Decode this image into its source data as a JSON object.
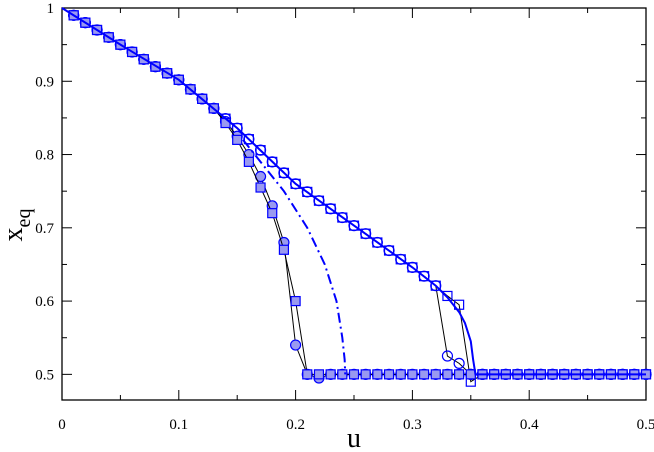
{
  "chart_data": {
    "type": "line",
    "xlabel": "u",
    "ylabel": "x",
    "ylabel_sub": "eq",
    "xlim": [
      0,
      0.5
    ],
    "ylim": [
      0.465,
      1
    ],
    "xticks": [
      0,
      0.1,
      0.2,
      0.3,
      0.4,
      0.5
    ],
    "yticks": [
      0.5,
      0.6,
      0.7,
      0.8,
      0.9,
      1
    ],
    "xminor_ticks": [
      0.05,
      0.15,
      0.25,
      0.35,
      0.45
    ],
    "yminor_ticks": [
      0.55,
      0.65,
      0.75,
      0.85,
      0.95
    ],
    "x": [
      0.01,
      0.02,
      0.03,
      0.04,
      0.05,
      0.06,
      0.07,
      0.08,
      0.09,
      0.1,
      0.11,
      0.12,
      0.13,
      0.14,
      0.15,
      0.16,
      0.17,
      0.18,
      0.19,
      0.2,
      0.21,
      0.22,
      0.23,
      0.24,
      0.25,
      0.26,
      0.27,
      0.28,
      0.29,
      0.3,
      0.31,
      0.32,
      0.33,
      0.34,
      0.35,
      0.36,
      0.37,
      0.38,
      0.39,
      0.4,
      0.41,
      0.42,
      0.43,
      0.44,
      0.45,
      0.46,
      0.47,
      0.48,
      0.49,
      0.5
    ],
    "series": [
      {
        "color": "#0000ff",
        "marker": "circle",
        "fill": "none",
        "line": "#000000",
        "values": [
          0.99,
          0.98,
          0.97,
          0.96,
          0.95,
          0.94,
          0.93,
          0.92,
          0.911,
          0.902,
          0.889,
          0.876,
          0.863,
          0.849,
          0.836,
          0.821,
          0.806,
          0.79,
          0.775,
          0.76,
          0.749,
          0.737,
          0.726,
          0.714,
          0.703,
          0.692,
          0.68,
          0.669,
          0.657,
          0.646,
          0.634,
          0.621,
          0.525,
          0.515,
          0.5,
          0.5,
          0.5,
          0.5,
          0.5,
          0.5,
          0.5,
          0.5,
          0.5,
          0.5,
          0.5,
          0.5,
          0.5,
          0.5,
          0.5,
          0.5
        ]
      },
      {
        "color": "#0000ff",
        "marker": "square",
        "fill": "none",
        "line": "#000000",
        "values": [
          0.99,
          0.98,
          0.97,
          0.96,
          0.95,
          0.94,
          0.93,
          0.92,
          0.911,
          0.902,
          0.889,
          0.876,
          0.863,
          0.849,
          0.836,
          0.821,
          0.806,
          0.79,
          0.775,
          0.76,
          0.749,
          0.737,
          0.726,
          0.714,
          0.703,
          0.692,
          0.68,
          0.669,
          0.657,
          0.646,
          0.634,
          0.621,
          0.607,
          0.595,
          0.49,
          0.5,
          0.5,
          0.5,
          0.5,
          0.5,
          0.5,
          0.5,
          0.5,
          0.5,
          0.5,
          0.5,
          0.5,
          0.5,
          0.5,
          0.5
        ]
      },
      {
        "color": "#0000ff",
        "marker": "circle",
        "fill": "#9a9af0",
        "line": "#000000",
        "values": [
          0.99,
          0.98,
          0.97,
          0.96,
          0.95,
          0.94,
          0.93,
          0.92,
          0.911,
          0.902,
          0.889,
          0.876,
          0.863,
          0.845,
          0.825,
          0.8,
          0.77,
          0.73,
          0.68,
          0.54,
          0.5,
          0.495,
          0.5,
          0.5,
          0.5,
          0.5,
          0.5,
          0.5,
          0.5,
          0.5,
          0.5,
          0.5,
          0.5,
          0.5,
          0.5,
          0.5,
          0.5,
          0.5,
          0.5,
          0.5,
          0.5,
          0.5,
          0.5,
          0.5,
          0.5,
          0.5,
          0.5,
          0.5,
          0.5,
          0.5
        ]
      },
      {
        "color": "#0000ff",
        "marker": "square",
        "fill": "#9a9af0",
        "line": "#000000",
        "values": [
          0.99,
          0.98,
          0.97,
          0.96,
          0.95,
          0.94,
          0.93,
          0.92,
          0.911,
          0.902,
          0.889,
          0.876,
          0.863,
          0.843,
          0.82,
          0.79,
          0.755,
          0.72,
          0.67,
          0.6,
          0.5,
          0.5,
          0.5,
          0.5,
          0.5,
          0.5,
          0.5,
          0.5,
          0.5,
          0.5,
          0.5,
          0.5,
          0.5,
          0.5,
          0.5,
          0.5,
          0.5,
          0.5,
          0.5,
          0.5,
          0.5,
          0.5,
          0.5,
          0.5,
          0.5,
          0.5,
          0.5,
          0.5,
          0.5,
          0.5
        ]
      },
      {
        "color": "#0000ff",
        "marker": "none",
        "dash": "solid",
        "x": [
          0,
          0.05,
          0.1,
          0.15,
          0.2,
          0.25,
          0.3,
          0.32,
          0.33,
          0.34,
          0.345,
          0.35,
          0.352,
          0.354,
          0.36,
          0.5
        ],
        "values": [
          1,
          0.95,
          0.902,
          0.836,
          0.76,
          0.703,
          0.646,
          0.621,
          0.605,
          0.585,
          0.57,
          0.545,
          0.52,
          0.5,
          0.5,
          0.5
        ]
      },
      {
        "color": "#0000ff",
        "marker": "none",
        "dash": "dashdot",
        "x": [
          0.155,
          0.17,
          0.19,
          0.21,
          0.225,
          0.235,
          0.24,
          0.242,
          0.2425
        ],
        "values": [
          0.82,
          0.79,
          0.75,
          0.7,
          0.65,
          0.6,
          0.55,
          0.52,
          0.5
        ]
      }
    ]
  }
}
